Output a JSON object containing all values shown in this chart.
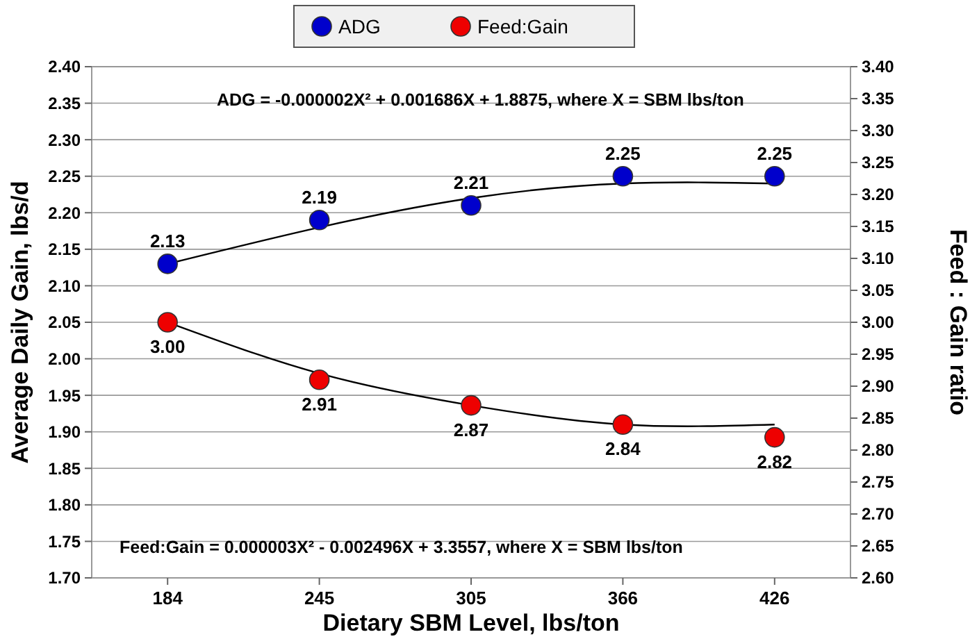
{
  "chart_data": {
    "type": "scatter",
    "xlabel": "Dietary SBM Level, lbs/ton",
    "ylabel": "Average Daily Gain, lbs/d",
    "y2label": "Feed : Gain ratio",
    "categories": [
      "184",
      "245",
      "305",
      "366",
      "426"
    ],
    "series": [
      {
        "name": "ADG",
        "marker": "circle",
        "color": "#0000cc",
        "values": [
          2.13,
          2.19,
          2.21,
          2.25,
          2.25
        ],
        "value_labels": [
          "2.13",
          "2.19",
          "2.21",
          "2.25",
          "2.25"
        ]
      },
      {
        "name": "Feed:Gain",
        "marker": "circle",
        "axis": "y2",
        "color": "#ee0000",
        "values": [
          3.0,
          2.91,
          2.87,
          2.84,
          2.82
        ],
        "value_labels": [
          "3.00",
          "2.91",
          "2.87",
          "2.84",
          "2.82"
        ]
      },
      {
        "type": "line",
        "color": "#000000",
        "values": [
          2.13,
          2.18,
          2.22,
          2.24,
          2.24
        ]
      },
      {
        "type": "line",
        "axis": "y2",
        "color": "#000000",
        "values": [
          3.0,
          2.92,
          2.87,
          2.84,
          2.84
        ]
      }
    ],
    "ylim": [
      1.7,
      2.4
    ],
    "yticks": [
      {
        "value": 1.7,
        "label": "1.70"
      },
      1.75,
      {
        "value": 1.8,
        "label": "1.80"
      },
      1.85,
      {
        "value": 1.9,
        "label": "1.90"
      },
      1.95,
      {
        "value": 2.0,
        "label": "2.00"
      },
      2.05,
      {
        "value": 2.1,
        "label": "2.10"
      },
      2.15,
      {
        "value": 2.2,
        "label": "2.20"
      },
      2.25,
      {
        "value": 2.3,
        "label": "2.30"
      },
      2.35,
      {
        "value": 2.4,
        "label": "2.40"
      }
    ],
    "y2lim": [
      2.6,
      3.4
    ],
    "y2ticks": [
      {
        "value": 2.6,
        "label": "2.60"
      },
      2.65,
      {
        "value": 2.7,
        "label": "2.70"
      },
      2.75,
      {
        "value": 2.8,
        "label": "2.80"
      },
      2.85,
      {
        "value": 2.9,
        "label": "2.90"
      },
      2.95,
      {
        "value": 3.0,
        "label": "3.00"
      },
      3.05,
      {
        "value": 3.1,
        "label": "3.10"
      },
      3.15,
      {
        "value": 3.2,
        "label": "3.20"
      },
      3.25,
      {
        "value": 3.3,
        "label": "3.30"
      },
      3.35,
      {
        "value": 3.4,
        "label": "3.40"
      }
    ],
    "annotations": [
      "ADG = -0.000002X² + 0.001686X + 1.8875, where X = SBM lbs/ton",
      "Feed:Gain = 0.000003X² - 0.002496X + 3.3557, where X = SBM lbs/ton"
    ],
    "grid": "y",
    "legend": "top"
  }
}
